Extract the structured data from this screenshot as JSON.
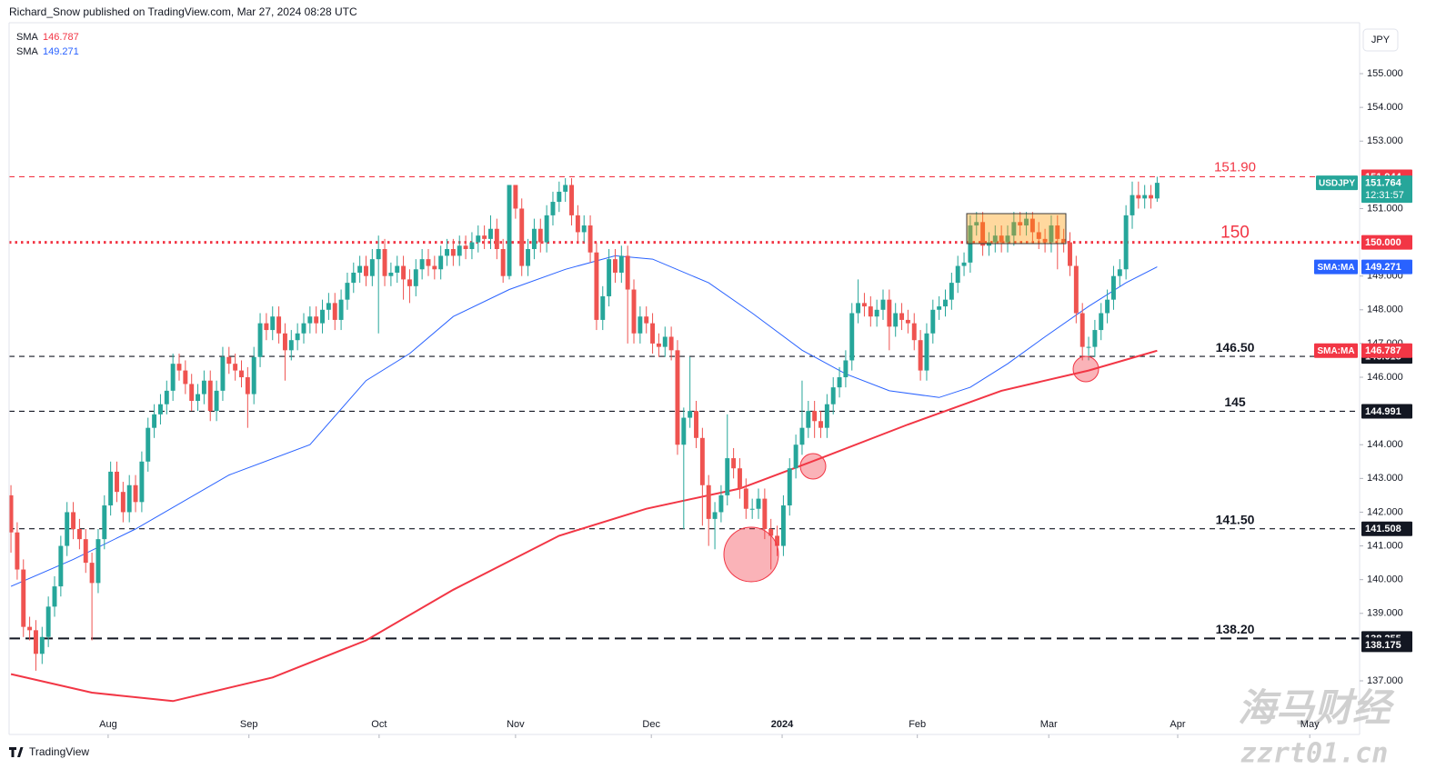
{
  "header": {
    "published": "Richard_Snow published on TradingView.com, Mar 27, 2024 08:28 UTC",
    "brand": "TradingView"
  },
  "watermark": {
    "name": "海马财经",
    "url": "zzrt01.cn"
  },
  "chart_data": {
    "type": "candlestick",
    "symbol": "USDJPY",
    "currency": "JPY",
    "countdown": "12:31:57",
    "up_color": "#26a69a",
    "down_color": "#ef5350",
    "xlim": [
      -0.3,
      216.5
    ],
    "ylim": [
      135.41,
      156.51
    ],
    "xticks": [
      {
        "value": 15.6,
        "label": "Aug"
      },
      {
        "value": 38.2,
        "label": "Sep"
      },
      {
        "value": 59.1,
        "label": "Oct"
      },
      {
        "value": 81.0,
        "label": "Nov"
      },
      {
        "value": 102.8,
        "label": "Dec"
      },
      {
        "value": 123.8,
        "label": "2024"
      },
      {
        "value": 145.5,
        "label": "Feb"
      },
      {
        "value": 166.6,
        "label": "Mar"
      },
      {
        "value": 187.3,
        "label": "Apr"
      },
      {
        "value": 208.5,
        "label": "May"
      }
    ],
    "yticks": [
      {
        "value": 137,
        "label": "137.000"
      },
      {
        "value": 139,
        "label": "139.000"
      },
      {
        "value": 140,
        "label": "140.000"
      },
      {
        "value": 141,
        "label": "141.000"
      },
      {
        "value": 142,
        "label": "142.000"
      },
      {
        "value": 143,
        "label": "143.000"
      },
      {
        "value": 144,
        "label": "144.000"
      },
      {
        "value": 146,
        "label": "146.000"
      },
      {
        "value": 147,
        "label": "147.000"
      },
      {
        "value": 148,
        "label": "148.000"
      },
      {
        "value": 149,
        "label": "149.000"
      },
      {
        "value": 151,
        "label": "151.000"
      },
      {
        "value": 153,
        "label": "153.000"
      },
      {
        "value": 154,
        "label": "154.000"
      },
      {
        "value": 155,
        "label": "155.000"
      }
    ],
    "candles": {
      "open": [
        142.5,
        141.4,
        140.3,
        138.6,
        138.5,
        137.8,
        138.3,
        139.2,
        139.8,
        141.0,
        142.0,
        141.5,
        141.2,
        140.5,
        139.9,
        141.2,
        142.2,
        143.2,
        142.6,
        142.0,
        142.8,
        142.3,
        143.5,
        144.5,
        144.9,
        145.2,
        145.6,
        146.4,
        146.2,
        145.8,
        145.3,
        145.5,
        145.9,
        145.0,
        145.6,
        146.6,
        146.4,
        146.2,
        146.0,
        145.5,
        146.6,
        147.6,
        147.4,
        147.8,
        147.3,
        146.8,
        147.1,
        147.3,
        147.6,
        147.8,
        147.6,
        148.0,
        148.2,
        147.7,
        148.3,
        148.8,
        149.1,
        149.3,
        149.0,
        149.5,
        149.8,
        149.0,
        149.1,
        149.3,
        148.9,
        148.7,
        149.2,
        149.5,
        149.3,
        149.2,
        149.6,
        149.8,
        149.6,
        149.9,
        149.8,
        150.0,
        150.2,
        150.1,
        150.4,
        149.8,
        149.0,
        151.7,
        151.0,
        149.3,
        149.8,
        150.4,
        150.0,
        150.8,
        151.2,
        151.5,
        151.7,
        150.8,
        150.3,
        150.5,
        149.7,
        147.7,
        148.4,
        149.5,
        149.1,
        149.6,
        148.6,
        147.3,
        147.8,
        147.6,
        147.0,
        146.9,
        147.2,
        146.8,
        144.0,
        144.8,
        145.0,
        144.2,
        142.8,
        141.8,
        142.0,
        142.5,
        143.6,
        143.3,
        142.7,
        142.1,
        142.1,
        142.4,
        141.5,
        141.3,
        141.0,
        142.2,
        143.3,
        144.0,
        144.5,
        145.0,
        144.7,
        144.5,
        145.2,
        145.7,
        146.0,
        146.5,
        147.9,
        148.2,
        148.1,
        147.8,
        148.0,
        148.3,
        147.5,
        147.9,
        147.7,
        147.6,
        147.1,
        146.2,
        147.3,
        148.0,
        148.1,
        148.3,
        148.8,
        149.3,
        149.4,
        150.5,
        150.6,
        149.9,
        150.0,
        150.2,
        150.0,
        150.2,
        150.6,
        150.5,
        150.7,
        150.3,
        150.1,
        150.0,
        150.5,
        150.1,
        150.0,
        149.3,
        147.9,
        146.9,
        146.9,
        147.4,
        147.9,
        148.3,
        149.0,
        149.2,
        150.8,
        151.4,
        151.3,
        151.4,
        151.3
      ],
      "high": [
        142.8,
        141.7,
        140.6,
        138.9,
        138.8,
        138.6,
        139.5,
        140.1,
        141.3,
        142.3,
        142.3,
        141.8,
        141.5,
        140.8,
        141.5,
        142.5,
        143.5,
        143.5,
        142.9,
        143.1,
        143.1,
        143.8,
        144.8,
        145.2,
        145.5,
        145.9,
        146.7,
        146.7,
        146.5,
        146.1,
        145.8,
        146.2,
        146.2,
        145.9,
        146.9,
        146.9,
        146.7,
        146.5,
        146.3,
        146.9,
        147.9,
        147.9,
        148.1,
        148.1,
        147.6,
        147.4,
        147.6,
        147.9,
        148.1,
        148.1,
        148.3,
        148.5,
        148.5,
        148.6,
        149.1,
        149.4,
        149.6,
        149.6,
        149.8,
        150.2,
        150.1,
        149.4,
        149.6,
        149.6,
        149.2,
        149.5,
        149.8,
        149.8,
        149.6,
        149.9,
        150.1,
        150.1,
        150.2,
        150.2,
        150.3,
        150.5,
        150.5,
        150.8,
        150.7,
        150.1,
        151.7,
        151.7,
        151.3,
        150.1,
        150.7,
        150.7,
        151.1,
        151.5,
        151.8,
        151.9,
        151.9,
        151.1,
        150.8,
        150.8,
        150.0,
        148.7,
        149.8,
        149.8,
        149.9,
        149.9,
        148.9,
        148.1,
        148.1,
        147.9,
        147.3,
        147.5,
        147.5,
        147.1,
        145.1,
        146.6,
        145.3,
        144.5,
        143.1,
        142.3,
        142.8,
        144.9,
        143.9,
        143.6,
        143.0,
        142.4,
        142.7,
        142.7,
        141.8,
        141.6,
        142.5,
        143.6,
        144.3,
        145.9,
        145.3,
        145.3,
        145.0,
        145.5,
        146.0,
        146.3,
        146.8,
        148.2,
        148.9,
        148.5,
        148.4,
        148.3,
        148.6,
        148.6,
        148.2,
        148.2,
        148.0,
        147.9,
        147.4,
        147.6,
        148.3,
        148.4,
        148.6,
        149.1,
        149.6,
        149.7,
        150.8,
        150.9,
        150.9,
        150.3,
        150.5,
        150.5,
        150.5,
        150.9,
        150.9,
        150.9,
        150.9,
        150.6,
        150.4,
        150.8,
        150.8,
        150.4,
        150.3,
        149.6,
        148.2,
        147.2,
        147.7,
        148.2,
        148.6,
        149.3,
        149.5,
        151.1,
        151.8,
        151.8,
        151.7,
        151.7,
        151.944
      ],
      "low": [
        140.8,
        140.0,
        138.3,
        138.2,
        137.3,
        137.5,
        138.0,
        138.9,
        139.5,
        140.7,
        141.2,
        140.9,
        140.2,
        138.2,
        139.6,
        140.9,
        141.9,
        142.3,
        141.7,
        141.7,
        142.0,
        142.0,
        143.2,
        144.2,
        144.6,
        144.9,
        145.3,
        145.9,
        145.5,
        145.0,
        145.0,
        145.2,
        144.7,
        144.7,
        145.3,
        146.1,
        145.9,
        145.7,
        144.5,
        145.2,
        146.3,
        147.1,
        147.1,
        147.0,
        145.9,
        146.5,
        146.8,
        147.0,
        147.3,
        147.3,
        147.3,
        147.7,
        147.4,
        147.4,
        148.0,
        148.5,
        148.8,
        148.7,
        148.7,
        147.3,
        148.7,
        148.7,
        148.8,
        148.3,
        148.2,
        148.4,
        148.9,
        149.0,
        148.9,
        148.9,
        149.3,
        149.3,
        149.3,
        149.5,
        149.5,
        149.7,
        149.8,
        149.8,
        149.5,
        148.8,
        148.9,
        150.7,
        149.0,
        149.0,
        149.5,
        149.7,
        149.7,
        150.5,
        150.9,
        151.2,
        150.5,
        150.0,
        150.0,
        149.4,
        147.4,
        147.4,
        148.1,
        148.8,
        148.8,
        147.0,
        147.0,
        147.0,
        147.3,
        146.7,
        146.6,
        146.6,
        146.5,
        143.7,
        141.5,
        144.5,
        143.9,
        141.6,
        141.0,
        140.9,
        141.7,
        142.2,
        143.0,
        142.4,
        141.8,
        141.8,
        141.8,
        141.2,
        140.3,
        140.7,
        140.7,
        141.9,
        143.0,
        143.7,
        144.2,
        144.2,
        144.2,
        144.2,
        144.9,
        145.4,
        145.7,
        146.2,
        147.6,
        147.8,
        147.5,
        147.5,
        147.7,
        146.8,
        147.2,
        147.4,
        147.3,
        146.8,
        145.9,
        145.9,
        147.0,
        147.7,
        147.8,
        148.0,
        148.5,
        149.0,
        149.1,
        150.2,
        149.6,
        149.6,
        149.7,
        149.7,
        149.7,
        149.9,
        150.2,
        150.2,
        150.0,
        149.8,
        149.7,
        149.7,
        149.2,
        149.7,
        149.0,
        147.6,
        146.5,
        146.5,
        146.6,
        147.1,
        147.6,
        148.0,
        148.7,
        148.9,
        150.4,
        151.0,
        151.0,
        151.0,
        151.2
      ],
      "close": [
        141.4,
        140.3,
        138.6,
        138.5,
        137.8,
        138.3,
        139.2,
        139.8,
        141.0,
        142.0,
        141.5,
        141.2,
        140.5,
        139.9,
        141.2,
        142.2,
        143.2,
        142.6,
        142.0,
        142.8,
        142.3,
        143.5,
        144.5,
        144.9,
        145.2,
        145.6,
        146.4,
        146.2,
        145.8,
        145.3,
        145.5,
        145.9,
        145.0,
        145.6,
        146.6,
        146.4,
        146.2,
        146.0,
        145.5,
        146.6,
        147.6,
        147.4,
        147.8,
        147.3,
        146.8,
        147.1,
        147.3,
        147.6,
        147.8,
        147.6,
        148.0,
        148.2,
        147.7,
        148.3,
        148.8,
        149.1,
        149.3,
        149.0,
        149.5,
        149.8,
        149.0,
        149.1,
        149.3,
        148.9,
        148.7,
        149.2,
        149.5,
        149.3,
        149.2,
        149.6,
        149.8,
        149.6,
        149.9,
        149.8,
        150.0,
        150.2,
        150.1,
        150.4,
        149.8,
        149.0,
        151.7,
        151.0,
        149.3,
        149.8,
        150.4,
        150.0,
        150.8,
        151.2,
        151.5,
        151.7,
        150.8,
        150.3,
        150.5,
        149.7,
        147.7,
        148.4,
        149.5,
        149.1,
        149.6,
        148.6,
        147.3,
        147.8,
        147.6,
        147.0,
        146.9,
        147.2,
        146.8,
        144.0,
        144.8,
        145.0,
        144.2,
        142.8,
        141.8,
        142.0,
        142.5,
        143.6,
        143.3,
        142.7,
        142.1,
        142.1,
        142.4,
        141.5,
        141.3,
        141.0,
        142.2,
        143.3,
        144.0,
        144.5,
        145.0,
        144.7,
        144.5,
        145.2,
        145.7,
        146.0,
        146.5,
        147.9,
        148.2,
        148.1,
        147.8,
        148.0,
        148.3,
        147.5,
        147.9,
        147.7,
        147.6,
        147.1,
        146.2,
        147.3,
        148.0,
        148.1,
        148.3,
        148.8,
        149.3,
        149.4,
        150.5,
        150.6,
        149.9,
        150.0,
        150.2,
        150.0,
        150.2,
        150.6,
        150.5,
        150.7,
        150.3,
        150.1,
        150.0,
        150.5,
        150.1,
        150.0,
        149.3,
        147.9,
        146.9,
        146.9,
        147.4,
        147.9,
        148.3,
        149.0,
        149.2,
        150.8,
        151.4,
        151.3,
        151.4,
        151.3,
        151.764
      ]
    },
    "indicators": [
      {
        "name": "SMA",
        "tag": "SMA:MA",
        "color": "#f23645",
        "x": [
          0,
          13,
          26,
          42,
          57,
          71,
          88,
          102,
          117,
          130,
          144,
          159,
          173,
          184
        ],
        "values": [
          137.2,
          136.65,
          136.4,
          137.1,
          138.2,
          139.7,
          141.3,
          142.1,
          142.7,
          143.6,
          144.6,
          145.6,
          146.2,
          146.787
        ]
      },
      {
        "name": "SMA",
        "tag": "SMA:MA",
        "color": "#2962ff",
        "x": [
          0,
          10,
          20,
          35,
          48,
          57,
          64,
          71,
          80,
          89,
          97,
          103,
          112,
          119,
          127,
          134,
          141,
          149,
          154,
          160,
          166,
          173,
          179,
          184
        ],
        "values": [
          139.8,
          140.6,
          141.5,
          143.1,
          144.0,
          145.9,
          146.7,
          147.8,
          148.6,
          149.2,
          149.6,
          149.5,
          148.8,
          147.9,
          146.8,
          146.1,
          145.6,
          145.4,
          145.7,
          146.4,
          147.2,
          148.1,
          148.8,
          149.271
        ]
      }
    ],
    "levels": [
      {
        "value": 151.944,
        "label": "151.90",
        "color": "#f23645",
        "style": "dashed"
      },
      {
        "value": 150,
        "value_label": "150.000",
        "label": "150",
        "color": "#f23645",
        "style": "dotted"
      },
      {
        "value": 146.618,
        "label": "146.50",
        "color": "#131722",
        "style": "dashed"
      },
      {
        "value": 144.991,
        "label": "145",
        "color": "#131722",
        "style": "dashed"
      },
      {
        "value": 141.508,
        "label": "141.50",
        "color": "#131722",
        "style": "dashed"
      },
      {
        "value": 138.255,
        "label": "138.20",
        "color": "#131722",
        "style": "longdash"
      }
    ],
    "extra_price_labels": [
      138.175
    ]
  }
}
